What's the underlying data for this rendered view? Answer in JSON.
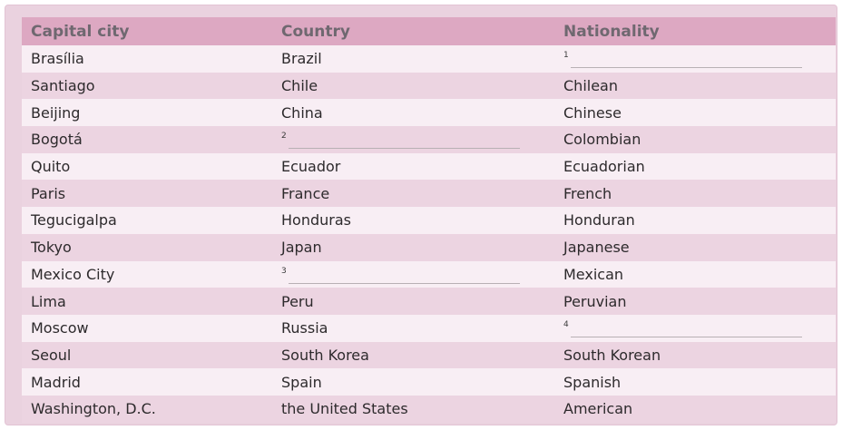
{
  "table": {
    "headers": {
      "capital": "Capital city",
      "country": "Country",
      "nationality": "Nationality"
    },
    "rows": [
      {
        "capital": "Brasília",
        "country": "Brazil",
        "nationality": "1"
      },
      {
        "capital": "Santiago",
        "country": "Chile",
        "nationality": "Chilean"
      },
      {
        "capital": "Beijing",
        "country": "China",
        "nationality": "Chinese"
      },
      {
        "capital": "Bogotá",
        "country": "2",
        "nationality": "Colombian"
      },
      {
        "capital": "Quito",
        "country": "Ecuador",
        "nationality": "Ecuadorian"
      },
      {
        "capital": "Paris",
        "country": "France",
        "nationality": "French"
      },
      {
        "capital": "Tegucigalpa",
        "country": "Honduras",
        "nationality": "Honduran"
      },
      {
        "capital": "Tokyo",
        "country": "Japan",
        "nationality": "Japanese"
      },
      {
        "capital": "Mexico City",
        "country": "3",
        "nationality": "Mexican"
      },
      {
        "capital": "Lima",
        "country": "Peru",
        "nationality": "Peruvian"
      },
      {
        "capital": "Moscow",
        "country": "Russia",
        "nationality": "4"
      },
      {
        "capital": "Seoul",
        "country": "South Korea",
        "nationality": "South Korean"
      },
      {
        "capital": "Madrid",
        "country": "Spain",
        "nationality": "Spanish"
      },
      {
        "capital": "Washington, D.C.",
        "country": "the United States",
        "nationality": "American"
      }
    ]
  },
  "colors": {
    "header_bg": "#dda8c2",
    "row_alt_bg": "#f8eef4",
    "row_bg": "#ecd4e1",
    "frame_bg": "#ead2df"
  }
}
